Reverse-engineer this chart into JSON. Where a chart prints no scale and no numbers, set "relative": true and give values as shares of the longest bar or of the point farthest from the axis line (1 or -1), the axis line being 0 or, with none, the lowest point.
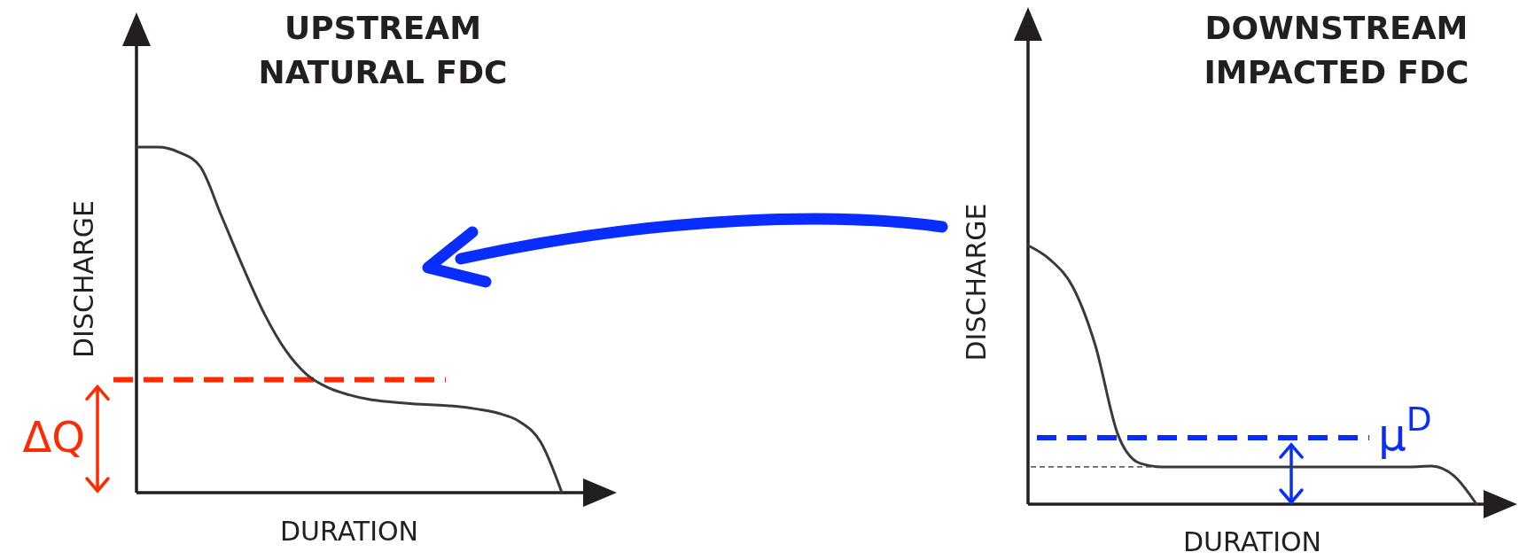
{
  "chart_data": [
    {
      "type": "line",
      "title": "UPSTREAM\nNATURAL FDC",
      "xlabel": "DURATION",
      "ylabel": "DISCHARGE",
      "relative": true,
      "categories": [
        null,
        null,
        null,
        null,
        null,
        null,
        null,
        null,
        null,
        null,
        null,
        null,
        null,
        null,
        null,
        null,
        null,
        null,
        null,
        null,
        null
      ],
      "series": [
        {
          "color": "#3a3a3a",
          "values": [
            1.0,
            1.0,
            0.985,
            0.943,
            0.8,
            0.654,
            0.519,
            0.413,
            0.342,
            0.304,
            0.283,
            0.269,
            0.262,
            0.257,
            0.254,
            0.25,
            0.242,
            0.23,
            0.206,
            0.147,
            0
          ]
        }
      ],
      "ref_lines": [
        {
          "axis": "y",
          "value": 0.327,
          "label": "ΔQ",
          "color": "#ff2a00",
          "line_style": "dashed"
        }
      ]
    },
    {
      "type": "line",
      "title": "DOWNSTREAM\nIMPACTED FDC",
      "xlabel": "DURATION",
      "ylabel": "DISCHARGE",
      "relative": true,
      "categories": [
        null,
        null,
        null,
        null,
        null,
        null,
        null,
        null,
        null,
        null,
        null,
        null,
        null,
        null,
        null,
        null,
        null,
        null,
        null,
        null,
        null
      ],
      "series": [
        {
          "color": "#3a3a3a",
          "values": [
            1.0,
            0.944,
            0.839,
            0.614,
            0.271,
            0.158,
            0.144,
            0.144,
            0.144,
            0.144,
            0.144,
            0.144,
            0.144,
            0.144,
            0.144,
            0.144,
            0.144,
            0.144,
            0.147,
            0.109,
            0
          ]
        }
      ],
      "ref_lines": [
        {
          "axis": "y",
          "value": 0.257,
          "label": "μ$^{D}$",
          "color": "#0a2dff",
          "line_style": "dashed"
        },
        {
          "axis": "y",
          "value": 0.144,
          "color": "#666666",
          "line_style": "dotted"
        }
      ]
    }
  ]
}
